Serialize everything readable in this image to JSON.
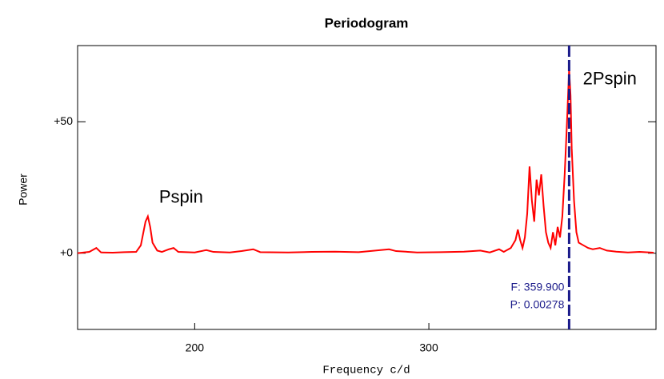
{
  "chart_data": {
    "type": "line",
    "title": "Periodogram",
    "xlabel": "Frequency c/d",
    "ylabel": "Power",
    "xlim": [
      150,
      397
    ],
    "xticks": [
      200,
      300
    ],
    "ylim": [
      -29,
      79
    ],
    "yticks": [
      {
        "value": 0,
        "label": "+0"
      },
      {
        "value": 50,
        "label": "+50"
      }
    ],
    "series": [
      {
        "color": "#ff0000",
        "x": [
          150,
          155,
          158,
          160,
          165,
          170,
          175,
          177,
          179,
          180,
          181,
          182,
          184,
          186,
          189,
          191,
          193,
          200,
          205,
          208,
          215,
          220,
          225,
          228,
          240,
          250,
          260,
          270,
          283,
          286,
          295,
          305,
          315,
          322,
          326,
          330,
          332,
          335,
          337,
          338,
          339,
          340,
          341,
          342,
          343,
          344,
          345,
          346,
          347,
          348,
          349,
          350,
          351,
          352,
          353,
          354,
          355,
          356,
          357,
          358,
          359,
          359.9,
          360.5,
          361,
          362,
          363,
          364,
          366,
          368,
          370,
          373,
          376,
          380,
          385,
          390,
          396
        ],
        "values": [
          0,
          0.5,
          2,
          0.3,
          0.2,
          0.4,
          0.5,
          3,
          12,
          14,
          10,
          4,
          1,
          0.5,
          1.5,
          2,
          0.5,
          0.3,
          1.2,
          0.5,
          0.3,
          0.8,
          1.5,
          0.4,
          0.3,
          0.5,
          0.6,
          0.4,
          1.5,
          0.8,
          0.3,
          0.4,
          0.6,
          1,
          0.3,
          1.5,
          0.5,
          2,
          5,
          9,
          5,
          2,
          6,
          15,
          33,
          20,
          12,
          28,
          22,
          30,
          18,
          8,
          4,
          2,
          8,
          3,
          10,
          6,
          14,
          30,
          50,
          70,
          60,
          40,
          20,
          8,
          4,
          3,
          2,
          1.5,
          2,
          1,
          0.6,
          0.3,
          0.5,
          0.2
        ]
      }
    ],
    "annotations": [
      {
        "text": "Pspin",
        "x": 180,
        "y": 21
      },
      {
        "text": "2Pspin",
        "x": 361,
        "y": 66
      }
    ],
    "cursor": {
      "x": 359.9,
      "color": "#1a1a8a",
      "labels": [
        "F: 359.900",
        "P: 0.00278"
      ]
    }
  }
}
